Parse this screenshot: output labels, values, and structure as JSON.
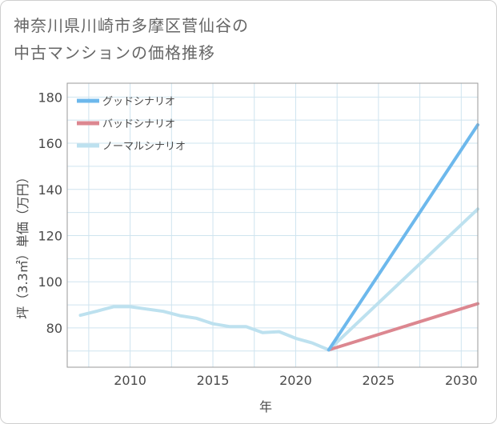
{
  "title_lines": [
    "神奈川県川崎市多摩区菅仙谷の",
    "中古マンションの価格推移"
  ],
  "chart_data": {
    "type": "line",
    "title": "神奈川県川崎市多摩区菅仙谷の中古マンションの価格推移",
    "xlabel": "年",
    "ylabel": "坪（3.3㎡）単価（万円）",
    "xlim": [
      2006.2,
      2031
    ],
    "ylim": [
      63,
      186
    ],
    "x_ticks": [
      2010,
      2015,
      2020,
      2025,
      2030
    ],
    "y_ticks": [
      80,
      100,
      120,
      140,
      160,
      180
    ],
    "grid": true,
    "legend_position": "top-left",
    "series": [
      {
        "name": "グッドシナリオ",
        "color": "#6db8ec",
        "x": [
          2022,
          2031
        ],
        "y": [
          70.5,
          168
        ]
      },
      {
        "name": "バッドシナリオ",
        "color": "#dc8790",
        "x": [
          2022,
          2031
        ],
        "y": [
          70.5,
          90.5
        ]
      },
      {
        "name": "ノーマルシナリオ",
        "color": "#bde1ef",
        "x": [
          2007,
          2008,
          2009,
          2010,
          2011,
          2012,
          2013,
          2014,
          2015,
          2016,
          2017,
          2018,
          2019,
          2020,
          2021,
          2022,
          2031
        ],
        "y": [
          85.5,
          87.3,
          89.2,
          89.2,
          88.2,
          87.2,
          85.3,
          84.2,
          81.8,
          80.6,
          80.6,
          78.0,
          78.4,
          75.5,
          73.5,
          70.5,
          131.5
        ]
      }
    ]
  }
}
